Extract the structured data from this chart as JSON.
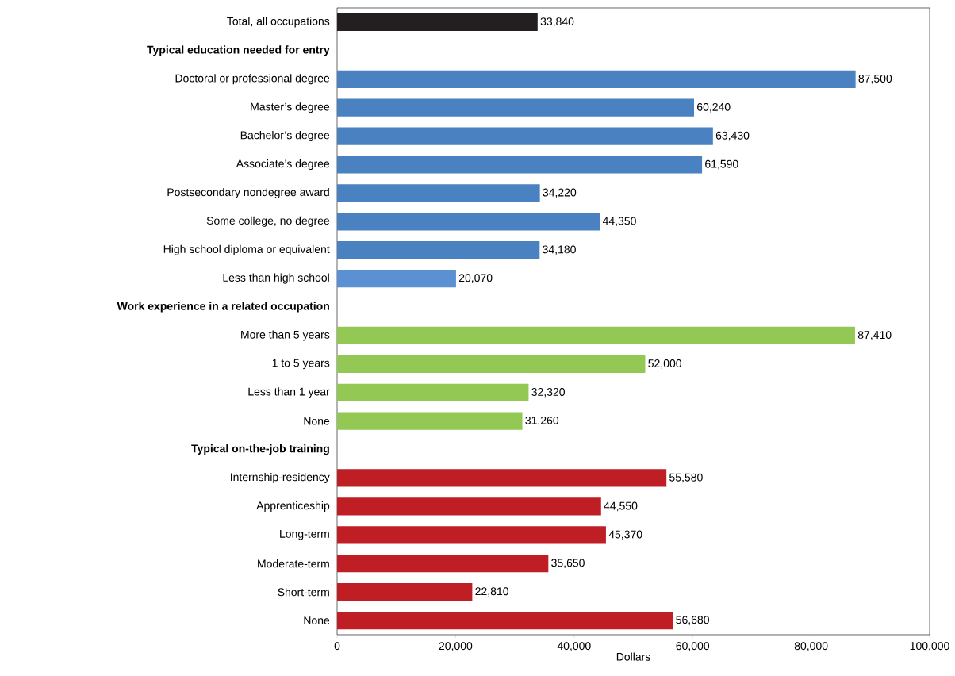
{
  "chart_data": {
    "type": "bar",
    "orientation": "horizontal",
    "xlabel": "Dollars",
    "categories": [
      "Total, all occupations",
      "Typical education needed for entry",
      "Doctoral or professional degree",
      "Master’s degree",
      "Bachelor’s degree",
      "Associate’s degree",
      "Postsecondary nondegree award",
      "Some college, no degree",
      "High school diploma or equivalent",
      "Less than high school",
      "Work experience in a related occupation",
      "More than 5 years",
      "1 to 5 years",
      "Less than 1 year",
      "None",
      "Typical on-the-job training",
      "Internship-residency",
      "Apprenticeship",
      "Long-term",
      "Moderate-term",
      "Short-term",
      "None"
    ],
    "values": [
      33840,
      null,
      87500,
      60240,
      63430,
      61590,
      34220,
      44350,
      34180,
      20070,
      null,
      87410,
      52000,
      32320,
      31260,
      null,
      55580,
      44550,
      45370,
      35650,
      22810,
      56680
    ],
    "colors": [
      "#231f20",
      null,
      "#4a81c1",
      "#4a81c1",
      "#4a81c1",
      "#4a81c1",
      "#4a81c1",
      "#4a81c1",
      "#4a81c1",
      "#5b90d2",
      null,
      "#92c853",
      "#92c853",
      "#92c853",
      "#92c853",
      null,
      "#c01e25",
      "#c01e25",
      "#c01e25",
      "#c01e25",
      "#c01e25",
      "#c01e25"
    ],
    "xlim": [
      0,
      100000
    ],
    "xticks": [
      0,
      {
        "value": 20000,
        "label": "20,000"
      },
      {
        "value": 40000,
        "label": "40,000"
      },
      {
        "value": 60000,
        "label": "60,000"
      },
      {
        "value": 80000,
        "label": "80,000"
      },
      {
        "value": 100000,
        "label": "100,000"
      }
    ],
    "value_labels": [
      "33,840",
      null,
      "87,500",
      "60,240",
      "63,430",
      "61,590",
      "34,220",
      "44,350",
      "34,180",
      "20,070",
      null,
      "87,410",
      "52,000",
      "32,320",
      "31,260",
      null,
      "55,580",
      "44,550",
      "45,370",
      "35,650",
      "22,810",
      "56,680"
    ],
    "grid": false
  }
}
